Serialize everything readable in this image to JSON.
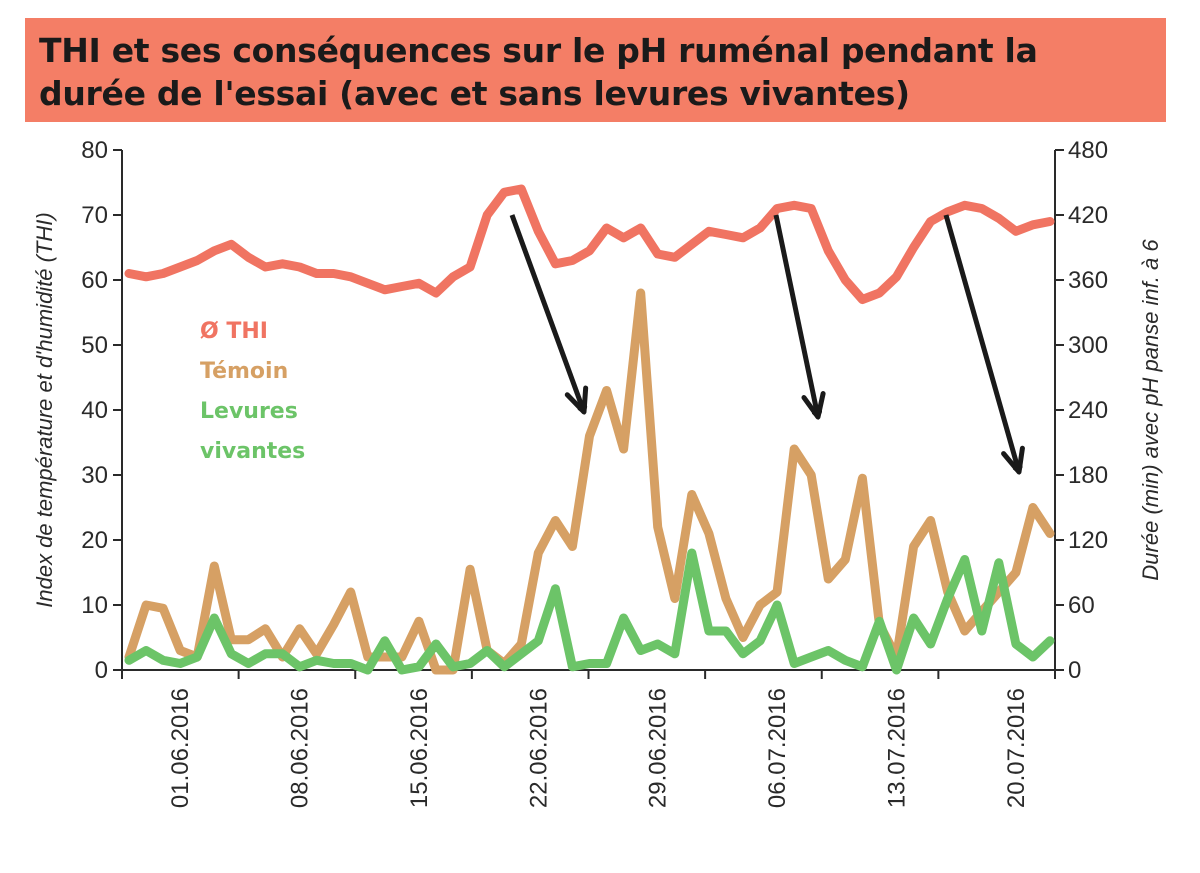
{
  "title": "THI et ses conséquences sur le pH ruménal pendant la durée de l'essai (avec et sans levures vivantes)",
  "colors": {
    "title_bg": "#f47e66",
    "thi": "#f07462",
    "temoin": "#d6a064",
    "levures": "#6cc468",
    "arrow": "#1a1a1a"
  },
  "chart_data": {
    "type": "line",
    "title": "THI et ses conséquences sur le pH ruménal pendant la durée de l'essai (avec et sans levures vivantes)",
    "ylabel": "Index de température et d'humidité (THI)",
    "y2label": "Durée (min) avec pH panse inf. à 6",
    "ylim": [
      0,
      80
    ],
    "y2lim": [
      0,
      480
    ],
    "yticks": [
      0,
      10,
      20,
      30,
      40,
      50,
      60,
      70,
      80
    ],
    "y2ticks": [
      0,
      60,
      120,
      180,
      240,
      300,
      360,
      420,
      480
    ],
    "x_tick_labels": [
      "01.06.2016",
      "08.06.2016",
      "15.06.2016",
      "22.06.2016",
      "29.06.2016",
      "06.07.2016",
      "13.07.2016",
      "20.07.2016"
    ],
    "legend": [
      "Ø THI",
      "Témoin",
      "Levures vivantes"
    ],
    "legend_position": "left",
    "grid": false,
    "series": [
      {
        "name": "Ø THI",
        "axis": "left",
        "values": [
          61,
          60.5,
          61,
          62,
          63,
          64.5,
          65.5,
          63.5,
          62,
          62.5,
          62,
          61,
          61,
          60.5,
          59.5,
          58.5,
          59,
          59.5,
          58,
          60.5,
          62,
          70,
          73.5,
          74,
          67.5,
          62.5,
          63,
          64.5,
          68,
          66.5,
          68,
          64,
          63.5,
          65.5,
          67.5,
          67,
          66.5,
          68,
          71,
          71.5,
          71,
          64.5,
          60,
          57,
          58,
          60.5,
          65,
          69,
          70.5,
          71.5,
          71,
          69.5,
          67.5,
          68.5,
          69
        ]
      },
      {
        "name": "Témoin",
        "axis": "right",
        "values": [
          12,
          60,
          57,
          18,
          12,
          96,
          28,
          28,
          38,
          12,
          38,
          15,
          42,
          72,
          12,
          12,
          12,
          45,
          0,
          0,
          93,
          18,
          6,
          24,
          108,
          138,
          114,
          216,
          258,
          204,
          348,
          132,
          66,
          162,
          126,
          66,
          30,
          60,
          72,
          204,
          180,
          84,
          102,
          177,
          42,
          12,
          114,
          138,
          72,
          36,
          54,
          72,
          90,
          150,
          126
        ]
      },
      {
        "name": "Levures vivantes",
        "axis": "right",
        "values": [
          9,
          18,
          9,
          6,
          12,
          48,
          15,
          6,
          15,
          15,
          3,
          9,
          6,
          6,
          0,
          27,
          0,
          3,
          24,
          3,
          6,
          18,
          3,
          15,
          27,
          75,
          3,
          6,
          6,
          48,
          18,
          24,
          15,
          108,
          36,
          36,
          15,
          27,
          60,
          6,
          12,
          18,
          9,
          3,
          45,
          0,
          48,
          24,
          66,
          102,
          36,
          99,
          24,
          12,
          27
        ]
      }
    ],
    "annotations": [
      "arrow",
      "arrow",
      "arrow"
    ]
  }
}
